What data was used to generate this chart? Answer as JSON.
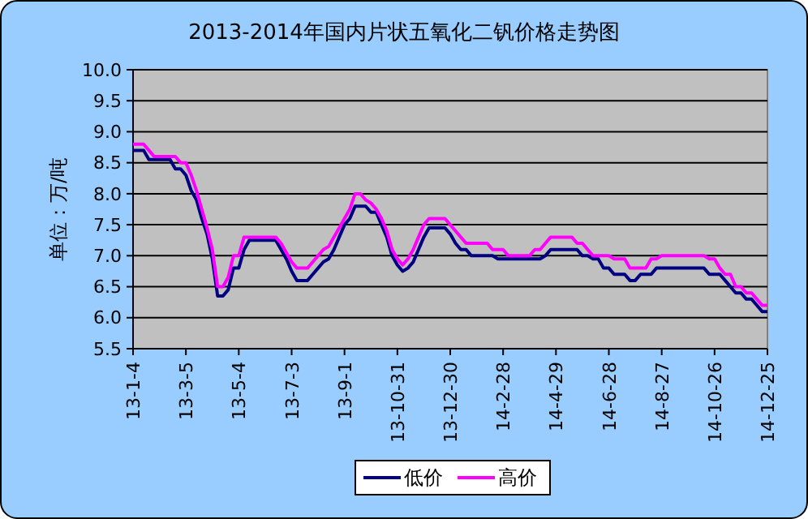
{
  "chart_data": {
    "type": "line",
    "title": "2013-2014年国内片状五氧化二钒价格走势图",
    "ylabel": "单位：万/吨",
    "categories": [
      "13-1-4",
      null,
      null,
      null,
      null,
      null,
      null,
      null,
      null,
      null,
      "13-3-5",
      null,
      null,
      null,
      null,
      null,
      null,
      null,
      null,
      null,
      "13-5-4",
      null,
      null,
      null,
      null,
      null,
      null,
      null,
      null,
      null,
      "13-7-3",
      null,
      null,
      null,
      null,
      null,
      null,
      null,
      null,
      null,
      "13-9-1",
      null,
      null,
      null,
      null,
      null,
      null,
      null,
      null,
      null,
      "13-10-31",
      null,
      null,
      null,
      null,
      null,
      null,
      null,
      null,
      null,
      "13-12-30",
      null,
      null,
      null,
      null,
      null,
      null,
      null,
      null,
      null,
      "14-2-28",
      null,
      null,
      null,
      null,
      null,
      null,
      null,
      null,
      null,
      "14-4-29",
      null,
      null,
      null,
      null,
      null,
      null,
      null,
      null,
      null,
      "14-6-28",
      null,
      null,
      null,
      null,
      null,
      null,
      null,
      null,
      null,
      "14-8-27",
      null,
      null,
      null,
      null,
      null,
      null,
      null,
      null,
      null,
      "14-10-26",
      null,
      null,
      null,
      null,
      null,
      null,
      null,
      null,
      null,
      "14-12-25"
    ],
    "series": [
      {
        "name": "低价",
        "color": "#000080",
        "values": [
          8.7,
          8.7,
          8.7,
          8.55,
          8.55,
          8.55,
          8.55,
          8.55,
          8.4,
          8.4,
          8.3,
          8.05,
          7.9,
          7.6,
          7.35,
          6.95,
          6.35,
          6.35,
          6.45,
          6.8,
          6.8,
          7.1,
          7.25,
          7.25,
          7.25,
          7.25,
          7.25,
          7.25,
          7.1,
          6.95,
          6.75,
          6.6,
          6.6,
          6.6,
          6.7,
          6.8,
          6.9,
          6.95,
          7.1,
          7.3,
          7.5,
          7.6,
          7.8,
          7.8,
          7.8,
          7.7,
          7.7,
          7.5,
          7.3,
          7.0,
          6.85,
          6.75,
          6.8,
          6.9,
          7.1,
          7.3,
          7.45,
          7.45,
          7.45,
          7.45,
          7.35,
          7.2,
          7.1,
          7.1,
          7.0,
          7.0,
          7.0,
          7.0,
          7.0,
          6.95,
          6.95,
          6.95,
          6.95,
          6.95,
          6.95,
          6.95,
          6.95,
          6.95,
          7.0,
          7.1,
          7.1,
          7.1,
          7.1,
          7.1,
          7.1,
          7.0,
          7.0,
          6.95,
          6.95,
          6.8,
          6.8,
          6.7,
          6.7,
          6.7,
          6.6,
          6.6,
          6.7,
          6.7,
          6.7,
          6.8,
          6.8,
          6.8,
          6.8,
          6.8,
          6.8,
          6.8,
          6.8,
          6.8,
          6.8,
          6.7,
          6.7,
          6.7,
          6.6,
          6.5,
          6.4,
          6.4,
          6.3,
          6.3,
          6.2,
          6.1,
          6.1
        ]
      },
      {
        "name": "高价",
        "color": "#ff00ff",
        "values": [
          8.8,
          8.8,
          8.8,
          8.7,
          8.6,
          8.6,
          8.6,
          8.6,
          8.6,
          8.5,
          8.5,
          8.3,
          8.05,
          7.75,
          7.45,
          7.1,
          6.5,
          6.5,
          6.65,
          7.0,
          7.0,
          7.3,
          7.3,
          7.3,
          7.3,
          7.3,
          7.3,
          7.3,
          7.2,
          7.05,
          6.9,
          6.8,
          6.8,
          6.8,
          6.9,
          7.0,
          7.1,
          7.15,
          7.3,
          7.45,
          7.6,
          7.75,
          8.0,
          8.0,
          7.9,
          7.85,
          7.75,
          7.6,
          7.4,
          7.1,
          6.95,
          6.85,
          6.95,
          7.1,
          7.3,
          7.5,
          7.6,
          7.6,
          7.6,
          7.6,
          7.5,
          7.4,
          7.3,
          7.2,
          7.2,
          7.2,
          7.2,
          7.2,
          7.1,
          7.1,
          7.1,
          7.0,
          7.0,
          7.0,
          7.0,
          7.0,
          7.1,
          7.1,
          7.2,
          7.3,
          7.3,
          7.3,
          7.3,
          7.3,
          7.2,
          7.2,
          7.1,
          7.0,
          7.0,
          7.0,
          7.0,
          6.95,
          6.95,
          6.95,
          6.8,
          6.8,
          6.8,
          6.8,
          6.95,
          6.95,
          7.0,
          7.0,
          7.0,
          7.0,
          7.0,
          7.0,
          7.0,
          7.0,
          7.0,
          6.95,
          6.95,
          6.8,
          6.7,
          6.7,
          6.5,
          6.5,
          6.4,
          6.4,
          6.3,
          6.2,
          6.2
        ]
      }
    ],
    "ylim": [
      5.5,
      10
    ],
    "yticks": [
      5.5,
      {
        "value": 6,
        "label": "6.0"
      },
      6.5,
      {
        "value": 7,
        "label": "7.0"
      },
      7.5,
      {
        "value": 8,
        "label": "8.0"
      },
      8.5,
      {
        "value": 9,
        "label": "9.0"
      },
      9.5,
      {
        "value": 10,
        "label": "10.0"
      }
    ],
    "grid": "y",
    "legend": "bottom",
    "marker": "none",
    "line_style": "solid"
  }
}
